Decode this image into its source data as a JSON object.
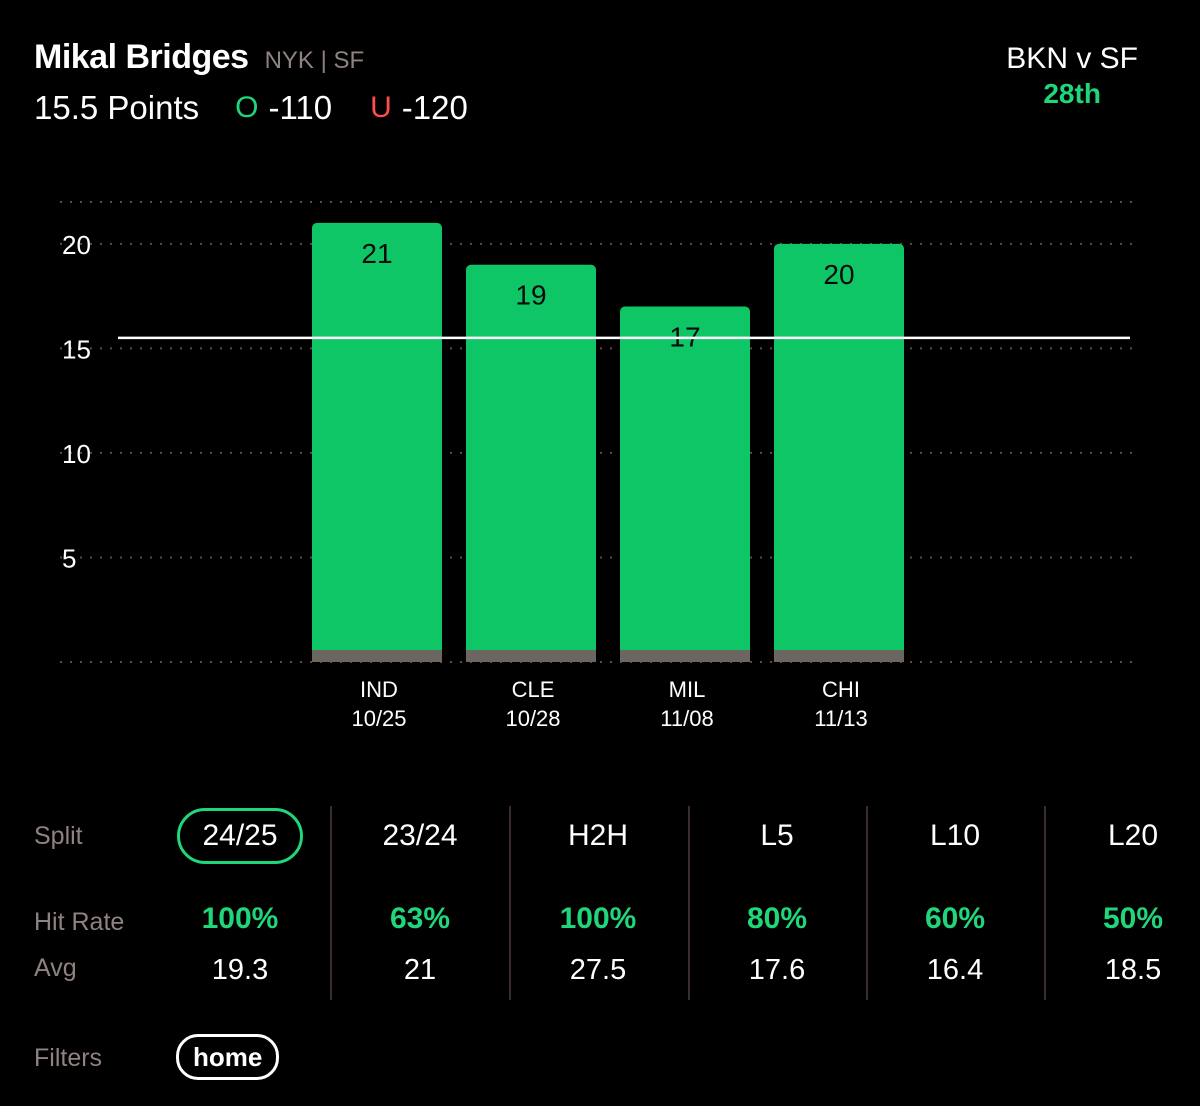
{
  "header": {
    "player_name": "Mikal Bridges",
    "teams": "NYK | SF",
    "prop_line": "15.5 Points",
    "over_letter": "O",
    "over_odds": "-110",
    "under_letter": "U",
    "under_odds": "-120",
    "matchup": "BKN v SF",
    "rank": "28th"
  },
  "colors": {
    "bar": "#0fc666",
    "bar_base": "#6b665f",
    "accent_green": "#1fd67a",
    "under_red": "#ff4d4d",
    "muted": "#8f8280",
    "grid": "#5a4a48"
  },
  "chart_data": {
    "type": "bar",
    "categories": [
      "IND",
      "CLE",
      "MIL",
      "CHI"
    ],
    "dates": [
      "10/25",
      "10/28",
      "11/08",
      "11/13"
    ],
    "values": [
      21,
      19,
      17,
      20
    ],
    "reference_line": 15.5,
    "yticks": [
      5,
      10,
      15,
      20
    ],
    "ylim": [
      0,
      22
    ],
    "grid": true
  },
  "splits": {
    "split_label": "Split",
    "hit_rate_label": "Hit Rate",
    "avg_label": "Avg",
    "columns": [
      {
        "name": "24/25",
        "hit_rate": "100%",
        "avg": "19.3"
      },
      {
        "name": "23/24",
        "hit_rate": "63%",
        "avg": "21"
      },
      {
        "name": "H2H",
        "hit_rate": "100%",
        "avg": "27.5"
      },
      {
        "name": "L5",
        "hit_rate": "80%",
        "avg": "17.6"
      },
      {
        "name": "L10",
        "hit_rate": "60%",
        "avg": "16.4"
      },
      {
        "name": "L20",
        "hit_rate": "50%",
        "avg": "18.5"
      }
    ]
  },
  "filters": {
    "label": "Filters",
    "chip": "home"
  }
}
